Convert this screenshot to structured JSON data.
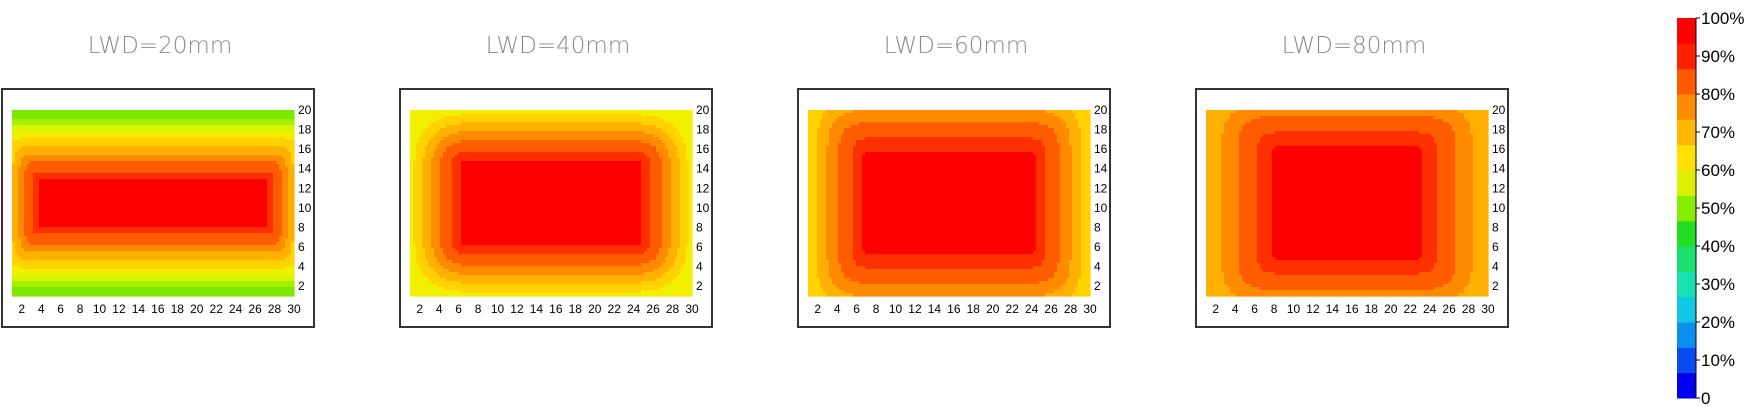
{
  "chart_data": [
    {
      "type": "heatmap",
      "title": "LWD=20mm",
      "x_ticks": [
        "2",
        "4",
        "6",
        "8",
        "10",
        "12",
        "14",
        "16",
        "18",
        "20",
        "22",
        "24",
        "26",
        "28",
        "30"
      ],
      "y_ticks": [
        "2",
        "4",
        "6",
        "8",
        "10",
        "12",
        "14",
        "16",
        "18",
        "20"
      ],
      "xlim": [
        1,
        30
      ],
      "ylim": [
        1,
        20
      ],
      "center_value": 100,
      "edge_value": 62,
      "plateau": [
        0.78,
        0.18
      ],
      "shape_power": 6,
      "axis_bias": "vertical"
    },
    {
      "type": "heatmap",
      "title": "LWD=40mm",
      "x_ticks": [
        "2",
        "4",
        "6",
        "8",
        "10",
        "12",
        "14",
        "16",
        "18",
        "20",
        "22",
        "24",
        "26",
        "28",
        "30"
      ],
      "y_ticks": [
        "2",
        "4",
        "6",
        "8",
        "10",
        "12",
        "14",
        "16",
        "18",
        "20"
      ],
      "xlim": [
        1,
        30
      ],
      "ylim": [
        1,
        20
      ],
      "center_value": 100,
      "edge_value": 74,
      "plateau": [
        0.6,
        0.38
      ],
      "shape_power": 2.4
    },
    {
      "type": "heatmap",
      "title": "LWD=60mm",
      "x_ticks": [
        "2",
        "4",
        "6",
        "8",
        "10",
        "12",
        "14",
        "16",
        "18",
        "20",
        "22",
        "24",
        "26",
        "28",
        "30"
      ],
      "y_ticks": [
        "2",
        "4",
        "6",
        "8",
        "10",
        "12",
        "14",
        "16",
        "18",
        "20"
      ],
      "xlim": [
        1,
        30
      ],
      "ylim": [
        1,
        20
      ],
      "center_value": 100,
      "edge_value": 77,
      "plateau": [
        0.55,
        0.46
      ],
      "shape_power": 3.2,
      "axis_bias": "horizontal"
    },
    {
      "type": "heatmap",
      "title": "LWD=80mm",
      "x_ticks": [
        "2",
        "4",
        "6",
        "8",
        "10",
        "12",
        "14",
        "16",
        "18",
        "20",
        "22",
        "24",
        "26",
        "28",
        "30"
      ],
      "y_ticks": [
        "2",
        "4",
        "6",
        "8",
        "10",
        "12",
        "14",
        "16",
        "18",
        "20"
      ],
      "xlim": [
        1,
        30
      ],
      "ylim": [
        1,
        20
      ],
      "center_value": 100,
      "edge_value": 80,
      "plateau": [
        0.44,
        0.52
      ],
      "shape_power": 3.5,
      "axis_bias": "horizontal"
    }
  ],
  "colorbar": {
    "labels": [
      "0",
      "10%",
      "20%",
      "30%",
      "40%",
      "50%",
      "60%",
      "70%",
      "80%",
      "90%",
      "100%"
    ],
    "colors": [
      "#0000ee",
      "#0a4cf2",
      "#0a8ef0",
      "#12c6e6",
      "#18e0b0",
      "#1ae070",
      "#22dd22",
      "#88ee00",
      "#ddf000",
      "#ffe000",
      "#ffb800",
      "#ff8c00",
      "#ff5a00",
      "#ff2000",
      "#ff0000"
    ]
  },
  "level_colors": [
    {
      "min": 97,
      "color": "#ff0000"
    },
    {
      "min": 93,
      "color": "#ff3000"
    },
    {
      "min": 88,
      "color": "#ff5c00"
    },
    {
      "min": 84,
      "color": "#ff8a00"
    },
    {
      "min": 80,
      "color": "#ffb000"
    },
    {
      "min": 76,
      "color": "#ffd200"
    },
    {
      "min": 72,
      "color": "#f2f000"
    },
    {
      "min": 69,
      "color": "#d6f500"
    },
    {
      "min": 66,
      "color": "#a8ee00"
    },
    {
      "min": 0,
      "color": "#7ce800"
    }
  ]
}
